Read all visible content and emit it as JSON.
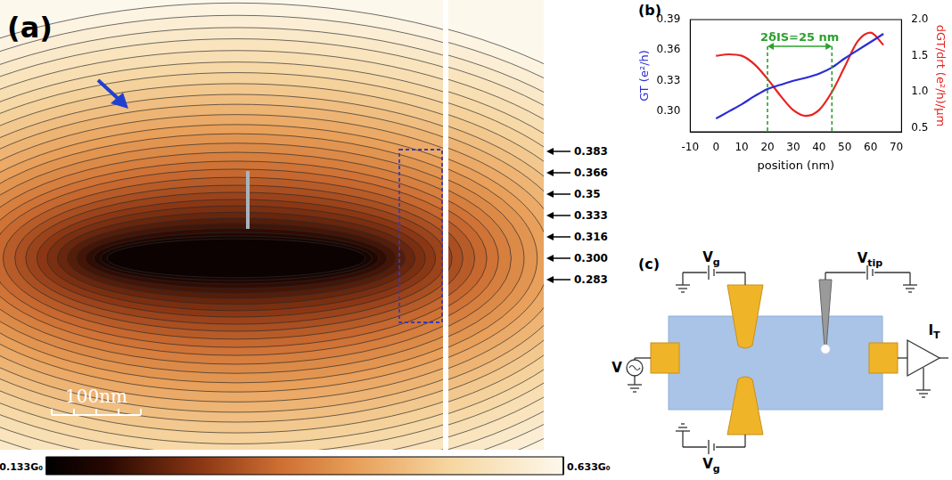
{
  "chart_data": [
    {
      "type": "contour",
      "panel_label": "(a)",
      "contours": [
        0.15,
        0.167,
        0.183,
        0.2,
        0.217,
        0.233,
        0.25,
        0.267,
        0.283,
        0.3,
        0.316,
        0.333,
        0.35,
        0.366,
        0.383,
        0.4,
        0.417,
        0.433,
        0.45,
        0.467,
        0.483,
        0.5,
        0.517,
        0.533,
        0.55,
        0.567,
        0.583,
        0.6,
        0.617
      ],
      "contour_labels": [
        0.383,
        0.366,
        0.35,
        0.333,
        0.316,
        {
          "value": 0.3,
          "label": "0.300"
        },
        0.283
      ],
      "colorbar": {
        "range": [
          0.133,
          0.633
        ],
        "ticks": [
          {
            "value": 0.133,
            "label": "0.133G₀"
          },
          {
            "value": 0.633,
            "label": "0.633G₀"
          }
        ]
      },
      "scale_bar": "100nm"
    },
    {
      "type": "line",
      "panel_label": "(b)",
      "x_label": "position (nm)",
      "y_label": "GT (e²/h)",
      "y2_label": "dGT/drt (e²/h)/µm",
      "x": [
        0,
        5,
        10,
        15,
        20,
        25,
        30,
        35,
        40,
        45,
        50,
        55,
        60,
        65
      ],
      "series": [
        {
          "color": "#2b2bd6",
          "values": [
            0.293,
            0.3,
            0.307,
            0.315,
            0.322,
            0.326,
            0.33,
            0.333,
            0.337,
            0.343,
            0.352,
            0.36,
            0.368,
            0.376
          ]
        },
        {
          "color": "#e8231f",
          "axis": "y2",
          "values": [
            1.5,
            1.52,
            1.5,
            1.38,
            1.18,
            0.95,
            0.75,
            0.67,
            0.75,
            1.0,
            1.35,
            1.7,
            1.82,
            1.65
          ]
        }
      ],
      "xlim": [
        -10,
        72
      ],
      "xticks": [
        -10,
        0,
        10,
        20,
        30,
        40,
        50,
        60,
        70
      ],
      "ylim": [
        0.28,
        0.39
      ],
      "yticks": [
        {
          "value": 0.3,
          "label": "0.30"
        },
        0.33,
        0.36,
        0.39
      ],
      "y2lim": [
        0.45,
        2.0
      ],
      "y2ticks": [
        0.5,
        {
          "value": 1.0,
          "label": "1.0"
        },
        1.5,
        {
          "value": 2.0,
          "label": "2.0"
        }
      ],
      "grid": false,
      "annotations": [
        {
          "text": "2δIS=25 nm",
          "x": [
            20,
            45
          ],
          "color": "#2ca02c"
        }
      ]
    }
  ],
  "diagram": {
    "panel_label": "(c)",
    "labels": {
      "gate_top": "Vg",
      "gate_bottom": "Vg",
      "tip": "Vtip",
      "source": "V",
      "current": "IT"
    }
  }
}
